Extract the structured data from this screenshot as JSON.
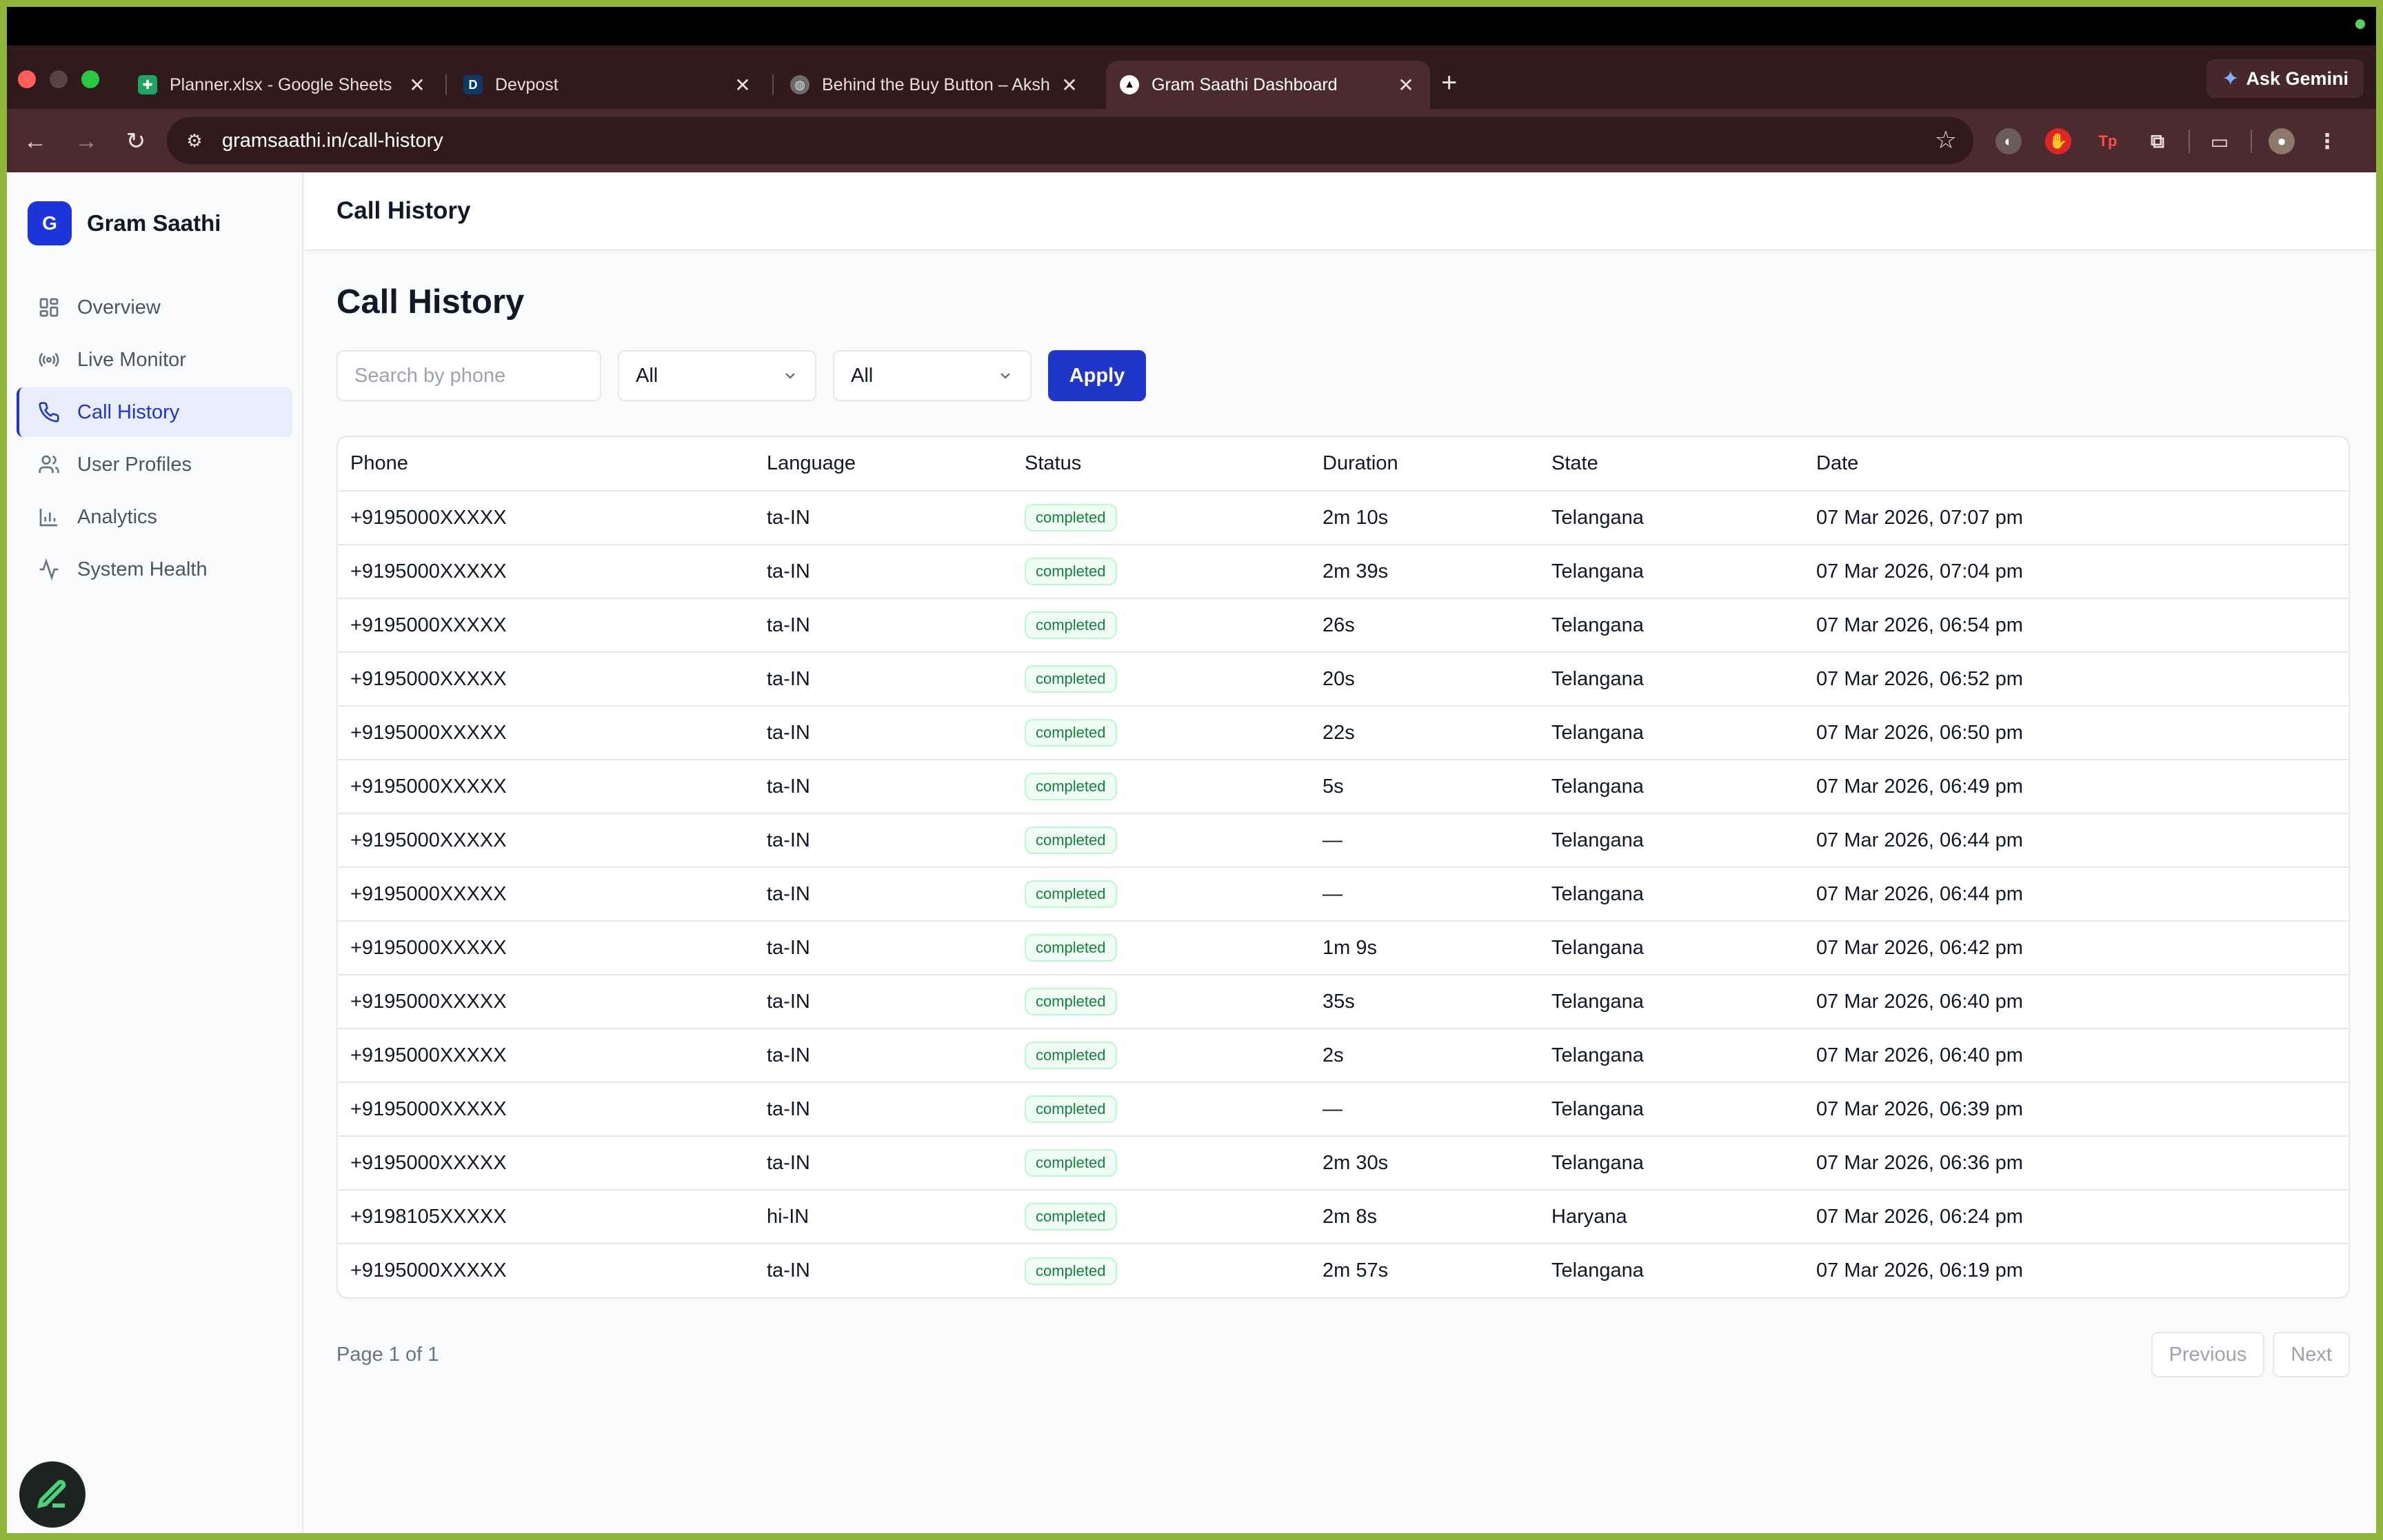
{
  "browser": {
    "tabs": [
      {
        "title": "Planner.xlsx - Google Sheets",
        "favicon": "sheets-icon",
        "color": "#1fa463"
      },
      {
        "title": "Devpost",
        "favicon": "D",
        "color": "#0d3a63"
      },
      {
        "title": "Behind the Buy Button – Aksh",
        "favicon": "globe-icon",
        "color": "#888888"
      },
      {
        "title": "Gram Saathi Dashboard",
        "favicon": "triangle-icon",
        "color": "#ffffff"
      }
    ],
    "url": "gramsaathi.in/call-history",
    "gemini_label": "Ask Gemini"
  },
  "app": {
    "brand_letter": "G",
    "brand_name": "Gram Saathi",
    "accent": "#1f36c9"
  },
  "sidebar": {
    "items": [
      {
        "label": "Overview",
        "icon": "grid-icon"
      },
      {
        "label": "Live Monitor",
        "icon": "broadcast-icon"
      },
      {
        "label": "Call History",
        "icon": "phone-icon",
        "active": true
      },
      {
        "label": "User Profiles",
        "icon": "users-icon"
      },
      {
        "label": "Analytics",
        "icon": "bar-chart-icon"
      },
      {
        "label": "System Health",
        "icon": "activity-icon"
      }
    ]
  },
  "header": {
    "title": "Call History"
  },
  "main": {
    "title": "Call History",
    "filters": {
      "search_placeholder": "Search by phone",
      "select1": "All",
      "select2": "All",
      "apply_label": "Apply"
    },
    "table": {
      "columns": [
        "Phone",
        "Language",
        "Status",
        "Duration",
        "State",
        "Date"
      ],
      "rows": [
        [
          "+9195000XXXXX",
          "ta-IN",
          "completed",
          "2m 10s",
          "Telangana",
          "07 Mar 2026, 07:07 pm"
        ],
        [
          "+9195000XXXXX",
          "ta-IN",
          "completed",
          "2m 39s",
          "Telangana",
          "07 Mar 2026, 07:04 pm"
        ],
        [
          "+9195000XXXXX",
          "ta-IN",
          "completed",
          "26s",
          "Telangana",
          "07 Mar 2026, 06:54 pm"
        ],
        [
          "+9195000XXXXX",
          "ta-IN",
          "completed",
          "20s",
          "Telangana",
          "07 Mar 2026, 06:52 pm"
        ],
        [
          "+9195000XXXXX",
          "ta-IN",
          "completed",
          "22s",
          "Telangana",
          "07 Mar 2026, 06:50 pm"
        ],
        [
          "+9195000XXXXX",
          "ta-IN",
          "completed",
          "5s",
          "Telangana",
          "07 Mar 2026, 06:49 pm"
        ],
        [
          "+9195000XXXXX",
          "ta-IN",
          "completed",
          "—",
          "Telangana",
          "07 Mar 2026, 06:44 pm"
        ],
        [
          "+9195000XXXXX",
          "ta-IN",
          "completed",
          "—",
          "Telangana",
          "07 Mar 2026, 06:44 pm"
        ],
        [
          "+9195000XXXXX",
          "ta-IN",
          "completed",
          "1m 9s",
          "Telangana",
          "07 Mar 2026, 06:42 pm"
        ],
        [
          "+9195000XXXXX",
          "ta-IN",
          "completed",
          "35s",
          "Telangana",
          "07 Mar 2026, 06:40 pm"
        ],
        [
          "+9195000XXXXX",
          "ta-IN",
          "completed",
          "2s",
          "Telangana",
          "07 Mar 2026, 06:40 pm"
        ],
        [
          "+9195000XXXXX",
          "ta-IN",
          "completed",
          "—",
          "Telangana",
          "07 Mar 2026, 06:39 pm"
        ],
        [
          "+9195000XXXXX",
          "ta-IN",
          "completed",
          "2m 30s",
          "Telangana",
          "07 Mar 2026, 06:36 pm"
        ],
        [
          "+9198105XXXXX",
          "hi-IN",
          "completed",
          "2m 8s",
          "Haryana",
          "07 Mar 2026, 06:24 pm"
        ],
        [
          "+9195000XXXXX",
          "ta-IN",
          "completed",
          "2m 57s",
          "Telangana",
          "07 Mar 2026, 06:19 pm"
        ]
      ]
    },
    "pagination": {
      "info": "Page 1 of 1",
      "prev_label": "Previous",
      "next_label": "Next"
    }
  }
}
